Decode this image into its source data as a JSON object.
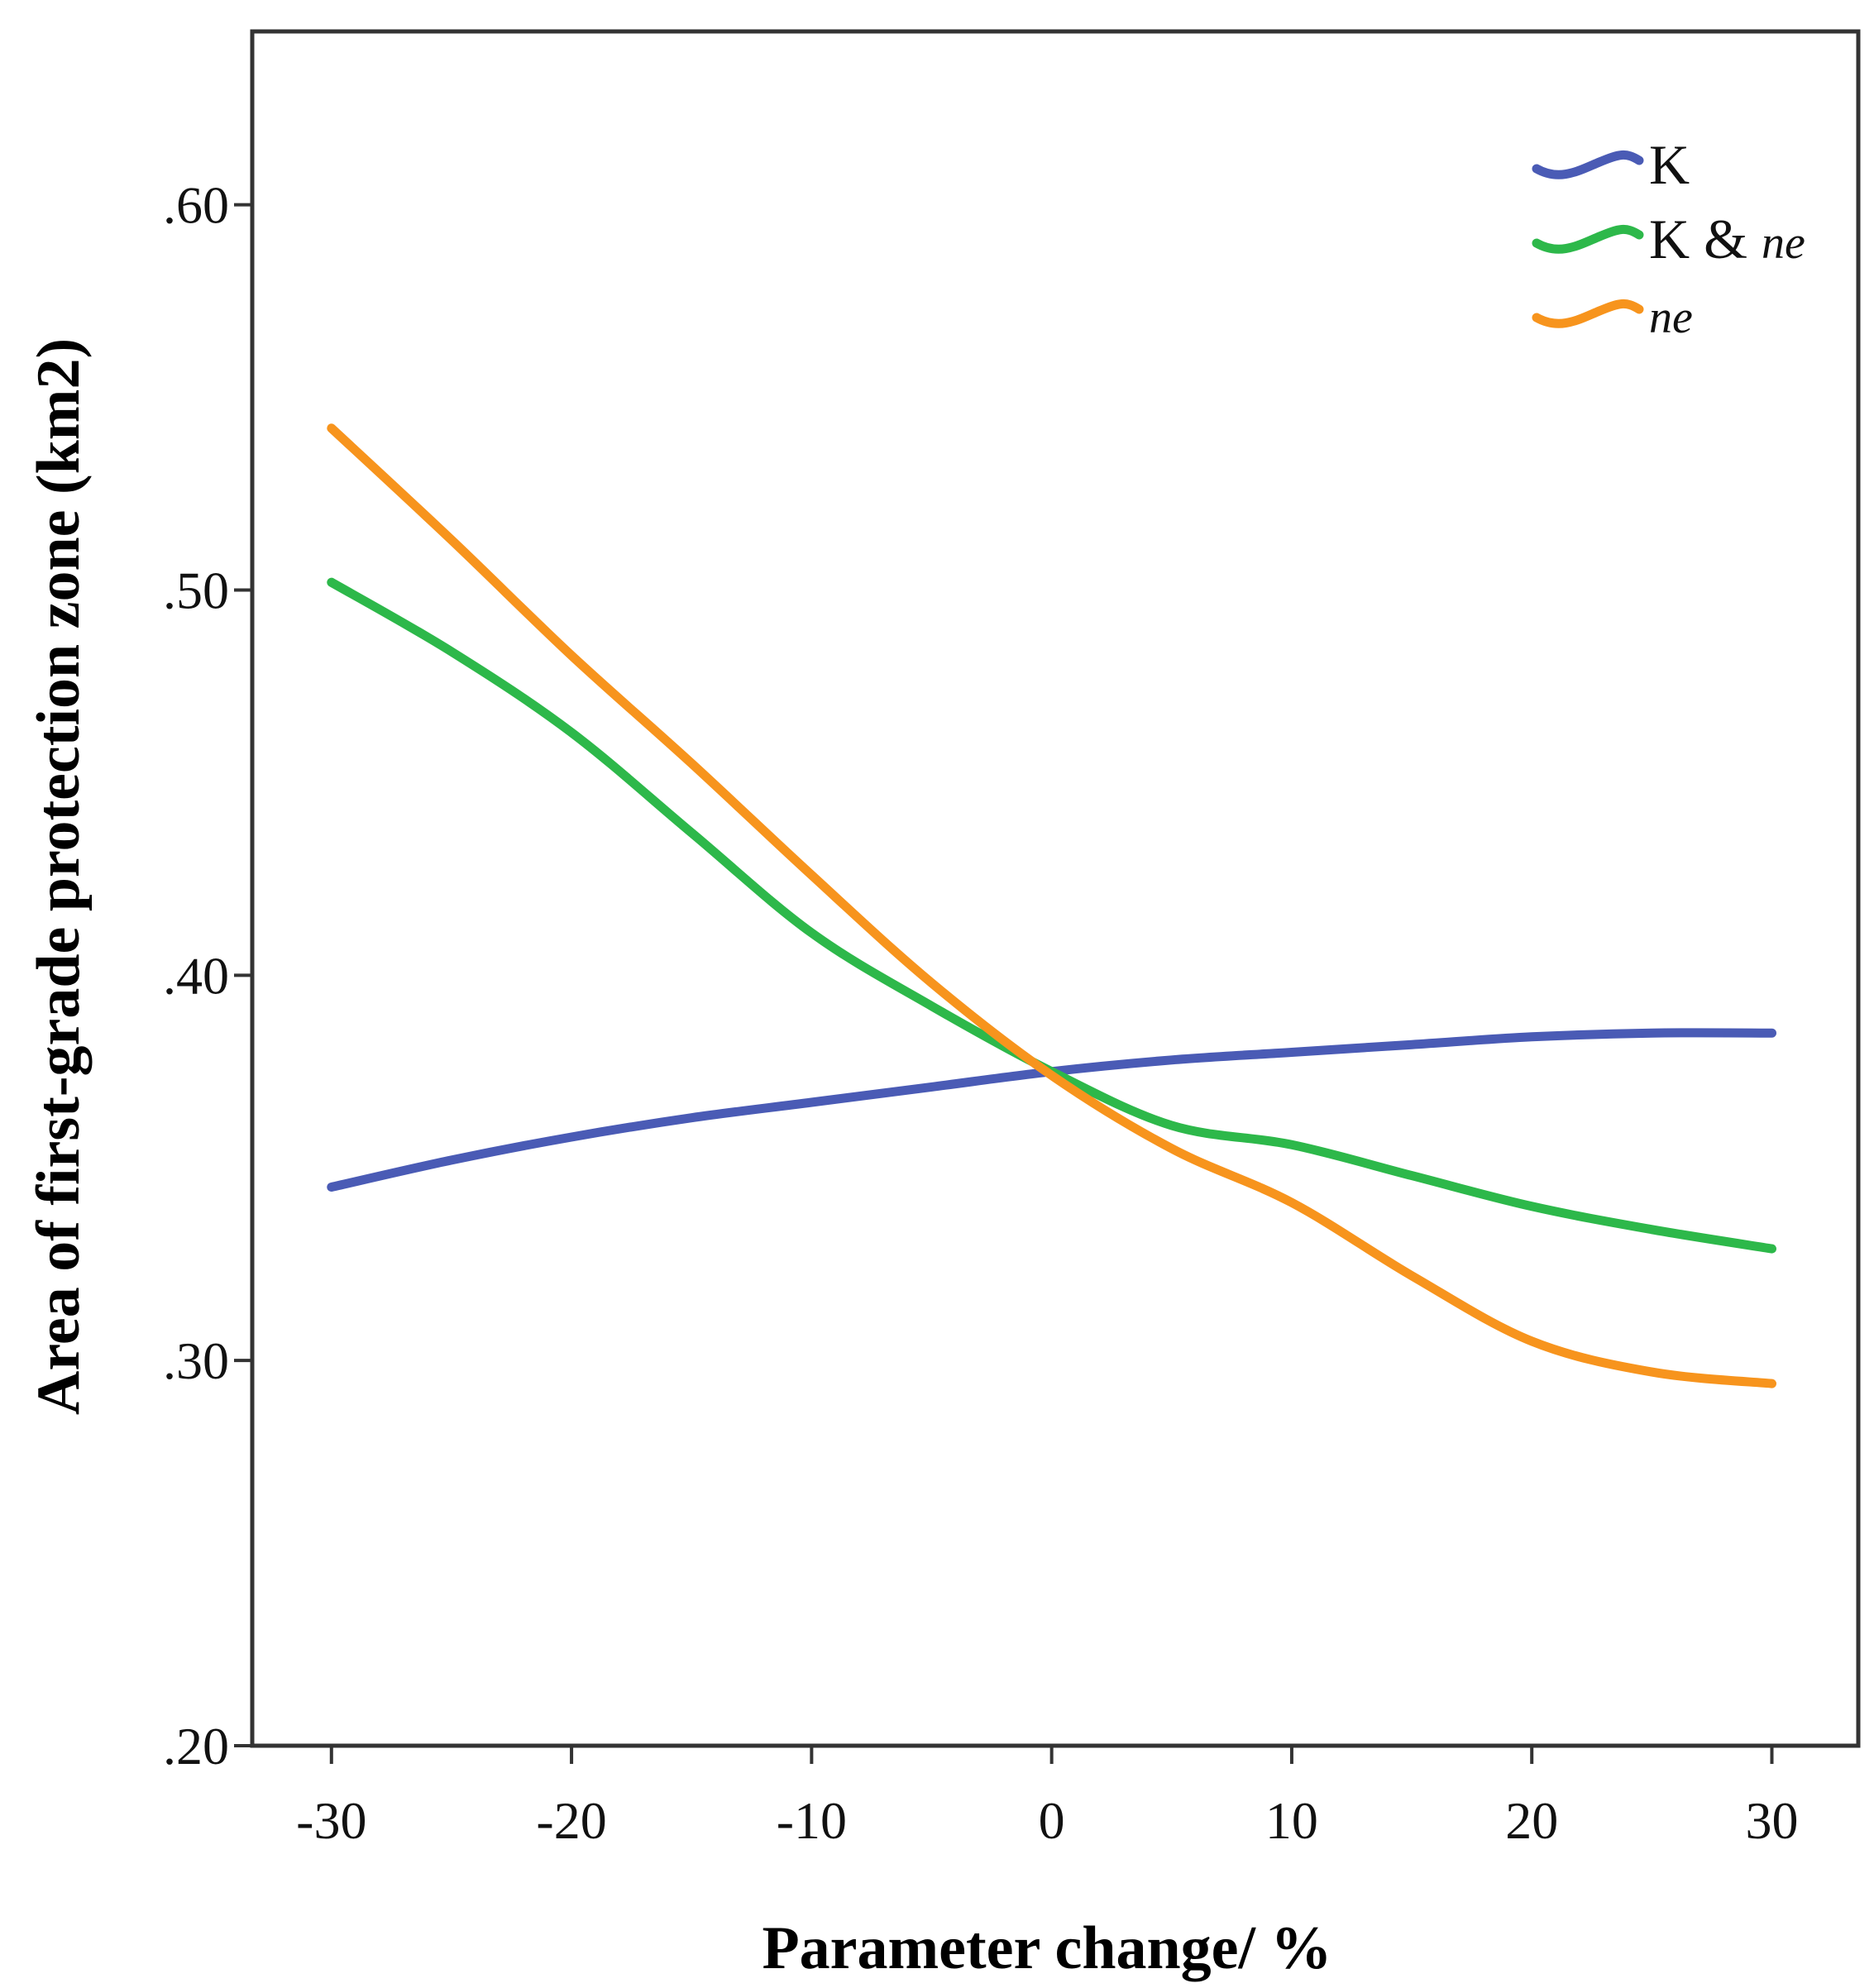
{
  "chart_data": {
    "type": "line",
    "title": "",
    "xlabel": "Parameter change/ %",
    "ylabel": "Area of first-grade protection zone (km2)",
    "xlim": [
      -33.3,
      33.6
    ],
    "ylim": [
      0.2,
      0.645
    ],
    "x_ticks": [
      -30,
      -20,
      -10,
      0,
      10,
      20,
      30
    ],
    "x_tick_labels": [
      "-30",
      "-20",
      "-10",
      "0",
      "10",
      "20",
      "30"
    ],
    "y_ticks": [
      0.2,
      0.3,
      0.4,
      0.5,
      0.6
    ],
    "y_tick_labels": [
      ".20",
      ".30",
      ".40",
      ".50",
      ".60"
    ],
    "legend_position": "top-right",
    "series": [
      {
        "name": "K",
        "legend_label": "K",
        "color": "#4a5bb5",
        "x": [
          -30,
          -25,
          -20,
          -15,
          -10,
          -5,
          0,
          5,
          10,
          15,
          20,
          25,
          30
        ],
        "values": [
          0.345,
          0.352,
          0.358,
          0.363,
          0.367,
          0.371,
          0.375,
          0.378,
          0.38,
          0.382,
          0.384,
          0.385,
          0.385
        ]
      },
      {
        "name": "K & ne",
        "legend_label": "K & ",
        "legend_italic": "ne",
        "color": "#2db84a",
        "x": [
          -30,
          -25,
          -20,
          -15,
          -10,
          -5,
          0,
          5,
          10,
          15,
          20,
          25,
          30
        ],
        "values": [
          0.502,
          0.484,
          0.463,
          0.437,
          0.411,
          0.392,
          0.375,
          0.361,
          0.356,
          0.348,
          0.34,
          0.334,
          0.329
        ]
      },
      {
        "name": "ne",
        "legend_label": "",
        "legend_italic": "ne",
        "color": "#f7941d",
        "x": [
          -30,
          -25,
          -20,
          -15,
          -10,
          -5,
          0,
          5,
          10,
          15,
          20,
          25,
          30
        ],
        "values": [
          0.542,
          0.513,
          0.483,
          0.455,
          0.426,
          0.398,
          0.374,
          0.355,
          0.341,
          0.322,
          0.305,
          0.297,
          0.294
        ]
      }
    ]
  }
}
